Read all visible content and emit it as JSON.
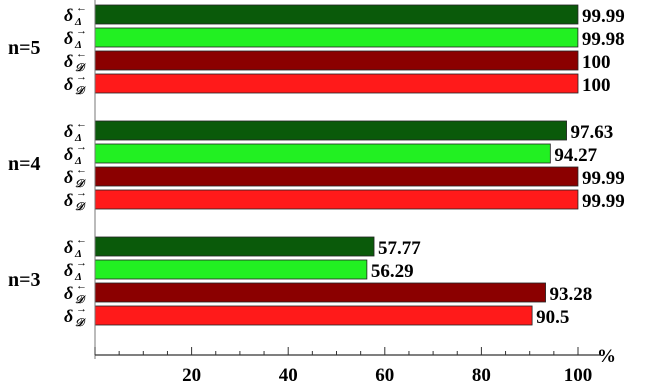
{
  "chart_data": {
    "type": "bar",
    "orientation": "horizontal",
    "title": "",
    "xlabel": "",
    "ylabel": "",
    "unit": "%",
    "xlim": [
      0,
      100
    ],
    "xticks": [
      20,
      40,
      60,
      80,
      100
    ],
    "grid": false,
    "legend": "none",
    "groups": [
      "n=5",
      "n=4",
      "n=3"
    ],
    "series": [
      {
        "name": "δΔ←",
        "symbol": "δ",
        "sub": "Δ",
        "arrow": "←",
        "color": "#0a5a0a",
        "values": [
          99.99,
          97.63,
          57.77
        ]
      },
      {
        "name": "δΔ→",
        "symbol": "δ",
        "sub": "Δ",
        "arrow": "→",
        "color": "#22f022",
        "values": [
          99.98,
          94.27,
          56.29
        ]
      },
      {
        "name": "δ𝒟←",
        "symbol": "δ",
        "sub": "𝒟",
        "arrow": "←",
        "color": "#8b0000",
        "values": [
          100,
          99.99,
          93.28
        ]
      },
      {
        "name": "δ𝒟→",
        "symbol": "δ",
        "sub": "𝒟",
        "arrow": "→",
        "color": "#ff1a1a",
        "values": [
          100,
          99.99,
          90.5
        ]
      }
    ],
    "value_labels": [
      [
        "99.99",
        "99.98",
        "100",
        "100"
      ],
      [
        "97.63",
        "94.27",
        "99.99",
        "99.99"
      ],
      [
        "57.77",
        "56.29",
        "93.28",
        "90.5"
      ]
    ]
  }
}
